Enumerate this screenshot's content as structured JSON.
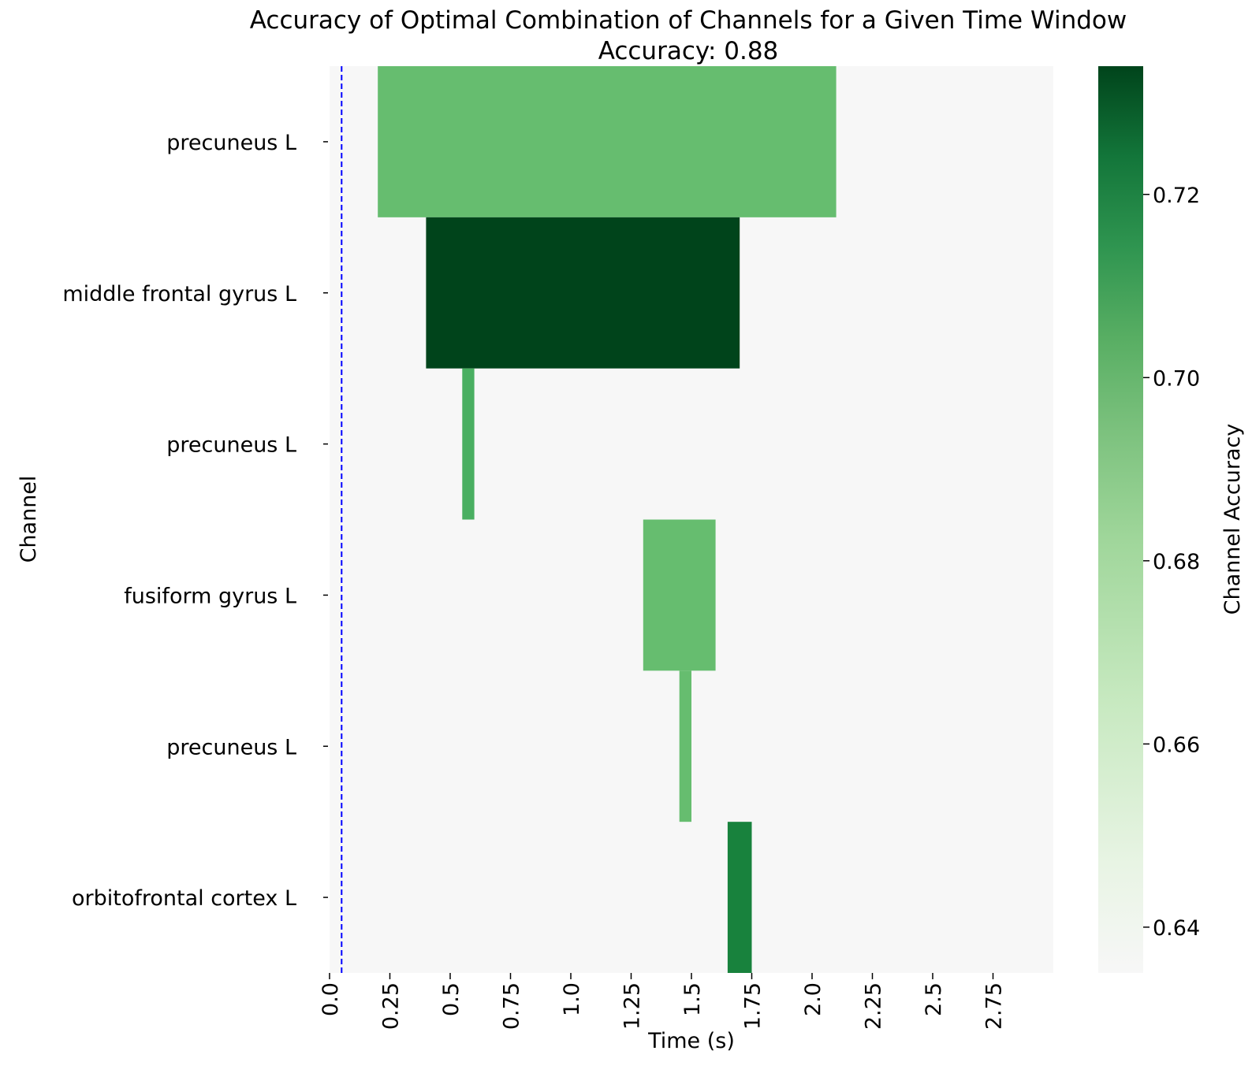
{
  "chart_data": {
    "type": "heatmap",
    "title": "Accuracy of Optimal Combination of Channels for a Given Time Window",
    "subtitle": "Accuracy: 0.88",
    "xlabel": "Time (s)",
    "ylabel": "Channel",
    "xlim": [
      0.0,
      3.0
    ],
    "x_ticks": [
      0.0,
      0.25,
      0.5,
      0.75,
      1.0,
      1.25,
      1.5,
      1.75,
      2.0,
      2.25,
      2.5,
      2.75
    ],
    "x_tick_labels": [
      "0.0",
      "0.25",
      "0.5",
      "0.75",
      "1.0",
      "1.25",
      "1.5",
      "1.75",
      "2.0",
      "2.25",
      "2.5",
      "2.75"
    ],
    "background_color": "#f7f7f7",
    "reference_line": {
      "x": 0.05,
      "color": "#0000ff",
      "style": "dashed"
    },
    "channels": [
      {
        "label": "precuneus L",
        "start": 0.2,
        "end": 2.1,
        "accuracy": 0.688
      },
      {
        "label": "middle frontal gyrus L",
        "start": 0.4,
        "end": 1.7,
        "accuracy": 0.734
      },
      {
        "label": "precuneus L",
        "start": 0.55,
        "end": 0.6,
        "accuracy": 0.695
      },
      {
        "label": "fusiform gyrus L",
        "start": 1.3,
        "end": 1.6,
        "accuracy": 0.688
      },
      {
        "label": "precuneus L",
        "start": 1.45,
        "end": 1.5,
        "accuracy": 0.688
      },
      {
        "label": "orbitofrontal cortex L",
        "start": 1.65,
        "end": 1.75,
        "accuracy": 0.713
      }
    ],
    "colorbar": {
      "label": "Channel Accuracy",
      "min": 0.635,
      "max": 0.734,
      "ticks": [
        0.64,
        0.66,
        0.68,
        0.7,
        0.72
      ],
      "tick_labels": [
        "0.64",
        "0.66",
        "0.68",
        "0.70",
        "0.72"
      ],
      "colormap": "Greens",
      "colormap_stops": [
        "#f7fcf5",
        "#e5f5e0",
        "#c7e9c0",
        "#a1d99b",
        "#74c476",
        "#41ab5d",
        "#238b45",
        "#006d2c",
        "#00441b"
      ]
    }
  }
}
